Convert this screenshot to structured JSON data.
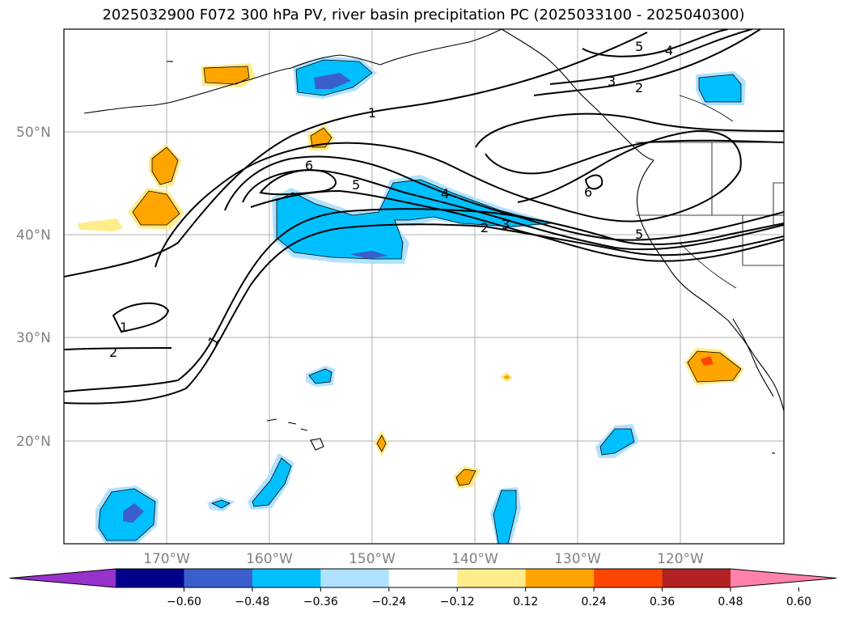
{
  "title": "2025032900 F072 300 hPa PV, river basin precipitation PC (2025033100 - 2025040300)",
  "lat_labels": [
    "50°N",
    "40°N",
    "30°N",
    "20°N"
  ],
  "lon_labels": [
    "170°W",
    "160°W",
    "150°W",
    "140°W",
    "130°W",
    "120°W"
  ],
  "contour_labels": [
    "1",
    "2",
    "3",
    "4",
    "5",
    "6"
  ],
  "colorbar": {
    "ticks": [
      "−0.60",
      "−0.48",
      "−0.36",
      "−0.24",
      "−0.12",
      "0.12",
      "0.24",
      "0.36",
      "0.48",
      "0.60"
    ],
    "colors": [
      "#9932cc",
      "#00008b",
      "#3a5fcd",
      "#00bfff",
      "#b0e2ff",
      "#ffffff",
      "#ffec8b",
      "#ffa500",
      "#ff4500",
      "#b22222",
      "#ff82ab"
    ]
  },
  "palette": {
    "light_blue": "#b0e2ff",
    "blue": "#00bfff",
    "dark_blue": "#3a5fcd",
    "light_yellow": "#ffec8b",
    "orange": "#ffa500",
    "red_orange": "#ff4500"
  }
}
